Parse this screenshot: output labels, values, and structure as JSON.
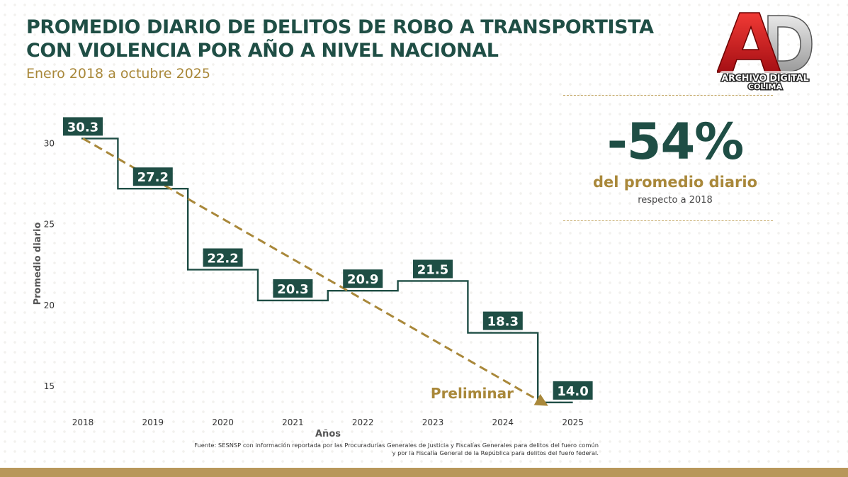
{
  "header": {
    "title_line1": "PROMEDIO DIARIO DE DELITOS DE ROBO A TRANSPORTISTA",
    "title_line2": "CON VIOLENCIA POR AÑO A NIVEL NACIONAL",
    "subtitle": "Enero 2018 a octubre 2025"
  },
  "logo": {
    "letters": "AD",
    "line1": "ARCHIVO DIGITAL",
    "line2": "COLIMA"
  },
  "kpi": {
    "value": "-54%",
    "caption": "del promedio diario",
    "note": "respecto a 2018"
  },
  "chart_data": {
    "type": "line",
    "step": true,
    "title": "PROMEDIO DIARIO DE DELITOS DE ROBO A TRANSPORTISTA CON VIOLENCIA POR AÑO A NIVEL NACIONAL",
    "xlabel": "Años",
    "ylabel": "Promedio diario",
    "categories": [
      "2018",
      "2019",
      "2020",
      "2021",
      "2022",
      "2023",
      "2024",
      "2025"
    ],
    "values": [
      30.3,
      27.2,
      22.2,
      20.3,
      20.9,
      21.5,
      18.3,
      14.0
    ],
    "labels": [
      "30.3",
      "27.2",
      "22.2",
      "20.3",
      "20.9",
      "21.5",
      "18.3",
      "14.0"
    ],
    "ylim": [
      14,
      31
    ],
    "yticks": [
      15,
      20,
      25,
      30
    ],
    "trend": {
      "from": 30.3,
      "to": 14.0
    },
    "annotation": "Preliminar",
    "colors": {
      "step": "#1f4e45",
      "label_bg": "#1f4e45",
      "trend": "#a9883a"
    },
    "grid": false
  },
  "source": {
    "line1": "Fuente: SESNSP con información reportada por las Procuradurías Generales de Justicia y Fiscalías Generales para delitos del fuero común",
    "line2": "y por la Fiscalía General de la República para delitos del fuero federal."
  }
}
